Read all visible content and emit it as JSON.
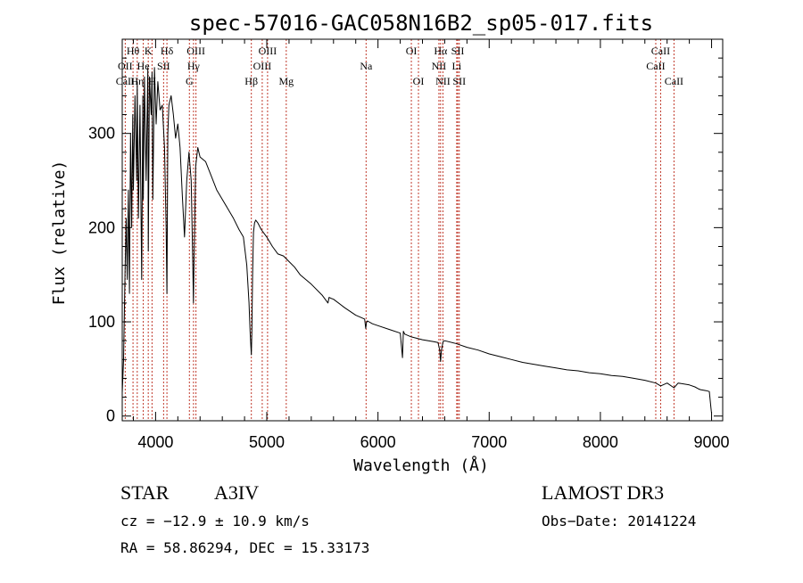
{
  "chart_data": {
    "type": "line",
    "title": "spec-57016-GAC058N16B2_sp05-017.fits",
    "xlabel": "Wavelength (Å)",
    "ylabel": "Flux (relative)",
    "xlim": [
      3700,
      9100
    ],
    "ylim": [
      -5,
      400
    ],
    "xticks": [
      4000,
      5000,
      6000,
      7000,
      8000,
      9000
    ],
    "yticks": [
      0,
      100,
      200,
      300
    ],
    "grid": false,
    "series": [
      {
        "name": "spectrum",
        "color": "#000000",
        "x": [
          3700,
          3712,
          3725,
          3735,
          3745,
          3755,
          3765,
          3775,
          3785,
          3795,
          3800,
          3815,
          3830,
          3835,
          3845,
          3860,
          3875,
          3885,
          3889,
          3900,
          3915,
          3930,
          3934,
          3945,
          3960,
          3968,
          3975,
          3990,
          4005,
          4020,
          4040,
          4060,
          4080,
          4095,
          4102,
          4110,
          4120,
          4140,
          4160,
          4180,
          4200,
          4220,
          4240,
          4260,
          4280,
          4300,
          4320,
          4335,
          4340,
          4345,
          4360,
          4380,
          4400,
          4450,
          4500,
          4550,
          4600,
          4650,
          4700,
          4750,
          4790,
          4820,
          4840,
          4850,
          4856,
          4861,
          4866,
          4872,
          4880,
          4890,
          4900,
          4920,
          4950,
          5000,
          5050,
          5100,
          5150,
          5200,
          5250,
          5300,
          5400,
          5500,
          5550,
          5560,
          5577,
          5600,
          5700,
          5800,
          5880,
          5890,
          5896,
          5905,
          5950,
          6000,
          6100,
          6200,
          6220,
          6228,
          6240,
          6300,
          6400,
          6500,
          6540,
          6555,
          6563,
          6571,
          6585,
          6600,
          6700,
          6800,
          6900,
          7000,
          7100,
          7200,
          7300,
          7400,
          7500,
          7600,
          7700,
          7800,
          7900,
          8000,
          8100,
          8200,
          8300,
          8400,
          8498,
          8542,
          8600,
          8662,
          8700,
          8800,
          8850,
          8880,
          8900,
          8950,
          8980,
          8995,
          9000
        ],
        "y": [
          25,
          60,
          150,
          210,
          145,
          240,
          130,
          300,
          200,
          320,
          240,
          340,
          250,
          355,
          210,
          330,
          145,
          340,
          230,
          360,
          250,
          370,
          175,
          360,
          320,
          365,
          230,
          370,
          310,
          355,
          325,
          330,
          285,
          200,
          130,
          300,
          330,
          340,
          320,
          295,
          310,
          285,
          235,
          190,
          250,
          280,
          250,
          160,
          120,
          160,
          265,
          285,
          275,
          270,
          255,
          240,
          230,
          220,
          210,
          198,
          190,
          160,
          120,
          90,
          75,
          65,
          90,
          150,
          195,
          205,
          208,
          205,
          198,
          190,
          180,
          172,
          170,
          164,
          158,
          150,
          140,
          128,
          120,
          126,
          125,
          124,
          115,
          107,
          103,
          93,
          99,
          101,
          98,
          96,
          92,
          88,
          62,
          90,
          87,
          84,
          81,
          79,
          78,
          70,
          58,
          70,
          79,
          80,
          77,
          73,
          70,
          66,
          63,
          60,
          57,
          55,
          53,
          51,
          49,
          48,
          46,
          45,
          43,
          42,
          40,
          38,
          35,
          32,
          35,
          30,
          35,
          33,
          31,
          29,
          28,
          27,
          26,
          8,
          3
        ]
      }
    ],
    "line_labels": [
      {
        "label": "CaII",
        "wavelength": 3727,
        "row": 3
      },
      {
        "label": "OII",
        "wavelength": 3727,
        "row": 2
      },
      {
        "label": "Hθ",
        "wavelength": 3797,
        "row": 1
      },
      {
        "label": "Hη",
        "wavelength": 3835,
        "row": 3
      },
      {
        "label": "He",
        "wavelength": 3889,
        "row": 2
      },
      {
        "label": "K",
        "wavelength": 3934,
        "row": 1
      },
      {
        "label": "H",
        "wavelength": 3968,
        "row": 3
      },
      {
        "label": "SII",
        "wavelength": 4072,
        "row": 2
      },
      {
        "label": "Hδ",
        "wavelength": 4102,
        "row": 1
      },
      {
        "label": "OIII",
        "wavelength": 4363,
        "row": 1
      },
      {
        "label": "Hγ",
        "wavelength": 4341,
        "row": 2
      },
      {
        "label": "G",
        "wavelength": 4304,
        "row": 3
      },
      {
        "label": "Hβ",
        "wavelength": 4861,
        "row": 3
      },
      {
        "label": "OIII",
        "wavelength": 5007,
        "row": 1
      },
      {
        "label": "OIII",
        "wavelength": 4959,
        "row": 2
      },
      {
        "label": "Mg",
        "wavelength": 5175,
        "row": 3
      },
      {
        "label": "Na",
        "wavelength": 5893,
        "row": 2
      },
      {
        "label": "OI",
        "wavelength": 6300,
        "row": 1
      },
      {
        "label": "OI",
        "wavelength": 6364,
        "row": 3
      },
      {
        "label": "Hα",
        "wavelength": 6563,
        "row": 1
      },
      {
        "label": "NII",
        "wavelength": 6548,
        "row": 2
      },
      {
        "label": "NII",
        "wavelength": 6584,
        "row": 3
      },
      {
        "label": "SII",
        "wavelength": 6717,
        "row": 1
      },
      {
        "label": "Li",
        "wavelength": 6708,
        "row": 2
      },
      {
        "label": "SII",
        "wavelength": 6731,
        "row": 3
      },
      {
        "label": "CaII",
        "wavelength": 8542,
        "row": 1
      },
      {
        "label": "CaII",
        "wavelength": 8498,
        "row": 2
      },
      {
        "label": "CaII",
        "wavelength": 8662,
        "row": 3
      }
    ],
    "line_color": "#c0392b"
  },
  "info": {
    "object_type": "STAR",
    "spectral_class": "A3IV",
    "survey": "LAMOST DR3",
    "velocity": "cz = −12.9 ± 10.9 km/s",
    "obs_date": "Obs−Date: 20141224",
    "coordinates": "RA =  58.86294, DEC =  15.33173"
  }
}
